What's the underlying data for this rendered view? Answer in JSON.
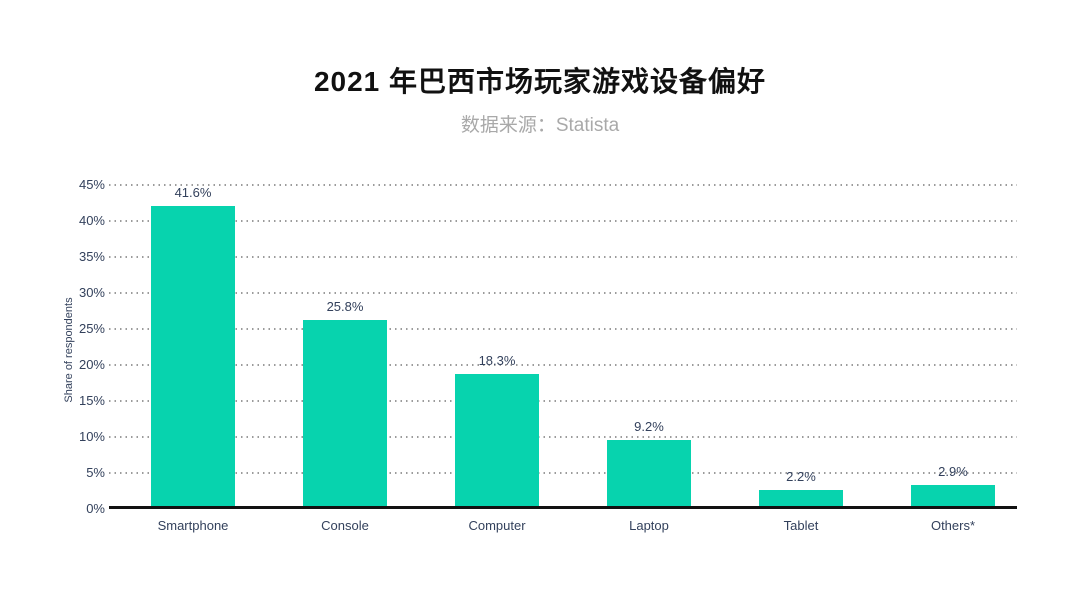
{
  "title": "2021 年巴西市场玩家游戏设备偏好",
  "subtitle": "数据来源：Statista",
  "colors": {
    "bar": "#07d3ae",
    "title_text": "#111111",
    "subtitle_text": "#a9a9a9",
    "axis_text": "#33415c",
    "gridline": "#9b9b9b",
    "axis_line": "#111111"
  },
  "chart_data": {
    "type": "bar",
    "title": "2021 年巴西市场玩家游戏设备偏好",
    "subtitle": "数据来源：Statista",
    "categories": [
      "Smartphone",
      "Console",
      "Computer",
      "Laptop",
      "Tablet",
      "Others*"
    ],
    "values": [
      41.6,
      25.8,
      18.3,
      9.2,
      2.2,
      2.9
    ],
    "value_labels": [
      "41.6%",
      "25.8%",
      "18.3%",
      "9.2%",
      "2.2%",
      "2.9%"
    ],
    "xlabel": "",
    "ylabel": "Share of respondents",
    "ylim": [
      0,
      45
    ],
    "yticks": [
      0,
      5,
      10,
      15,
      20,
      25,
      30,
      35,
      40,
      45
    ],
    "ytick_labels": [
      "0%",
      "5%",
      "10%",
      "15%",
      "20%",
      "25%",
      "30%",
      "35%",
      "40%",
      "45%"
    ],
    "grid": "horizontal-dotted",
    "legend": "none",
    "bar_color": "#07d3ae"
  }
}
